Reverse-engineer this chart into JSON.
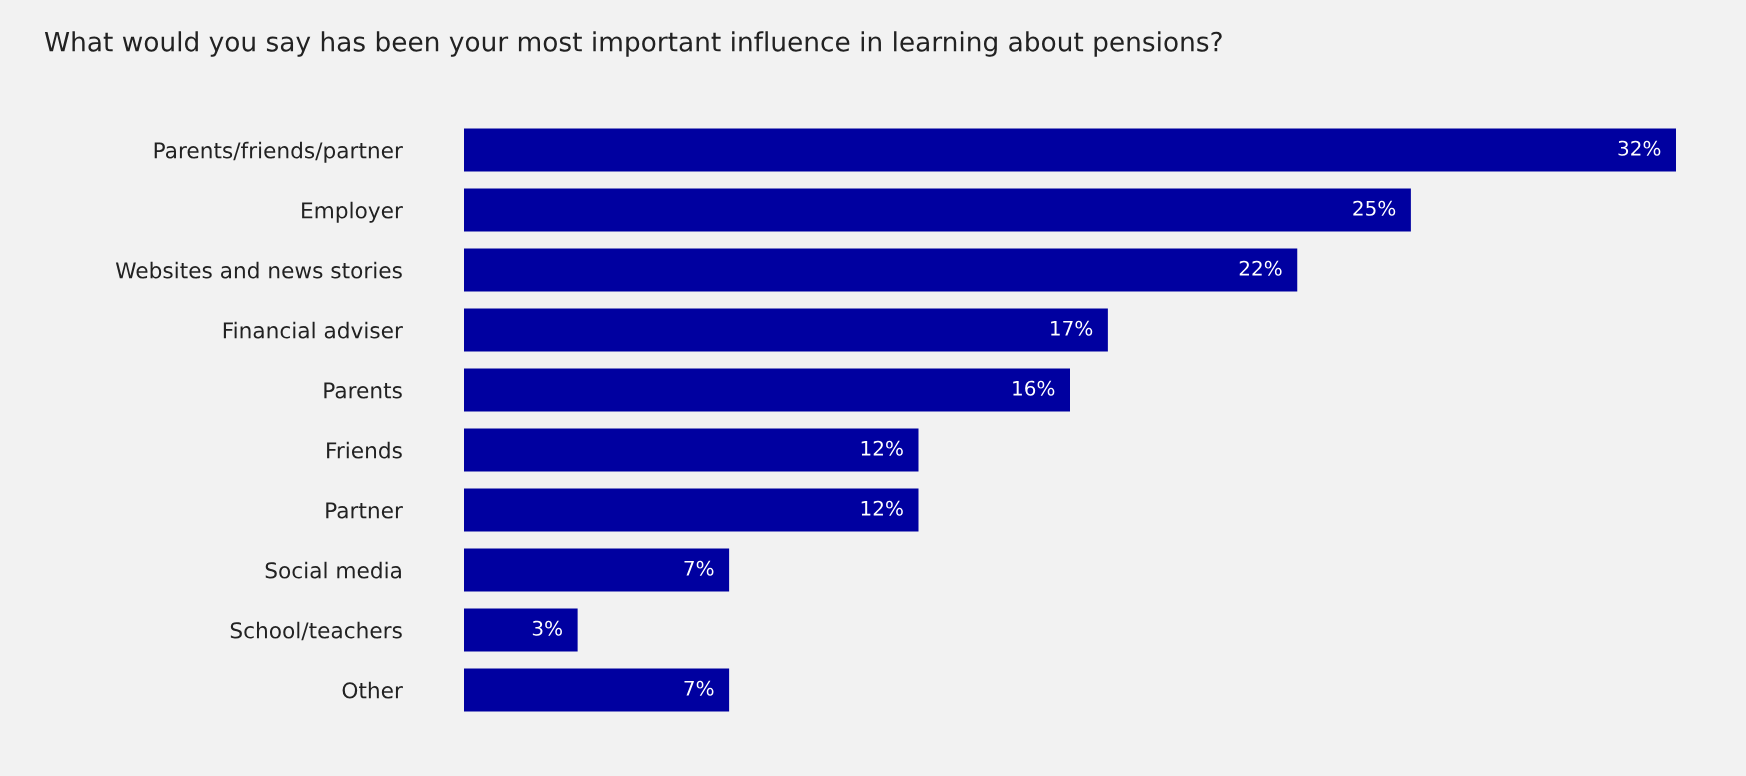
{
  "chart_data": {
    "type": "bar",
    "orientation": "horizontal",
    "title": "What would you say has been your most important influence in learning about pensions?",
    "categories": [
      "Parents/friends/partner",
      "Employer",
      "Websites and news stories",
      "Financial adviser",
      "Parents",
      "Friends",
      "Partner",
      "Social media",
      "School/teachers",
      "Other"
    ],
    "values": [
      32,
      25,
      22,
      17,
      16,
      12,
      12,
      7,
      3,
      7
    ],
    "value_labels": [
      "32%",
      "25%",
      "22%",
      "17%",
      "16%",
      "12%",
      "12%",
      "7%",
      "3%",
      "7%"
    ],
    "color": "#0000a0",
    "grid": false,
    "legend": false
  }
}
